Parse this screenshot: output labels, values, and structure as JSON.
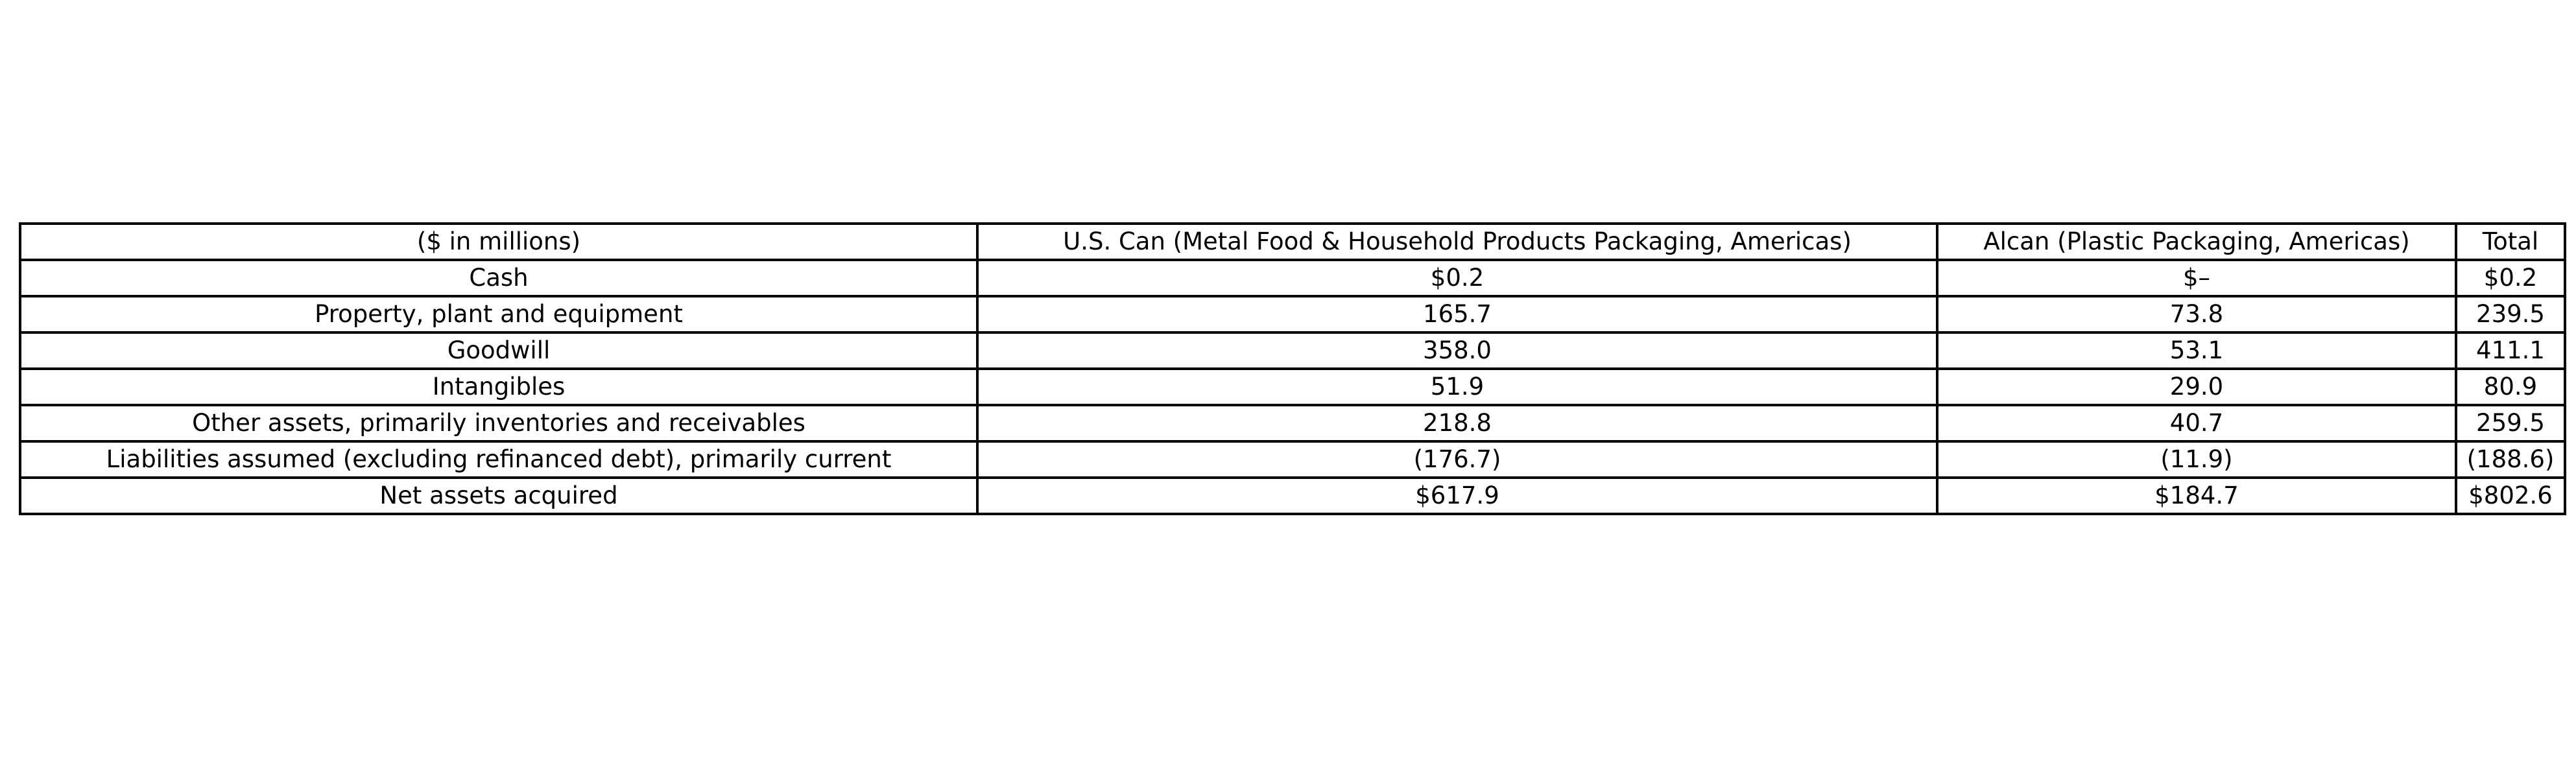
{
  "chart_data": {
    "type": "table",
    "title": "",
    "columns": [
      "($ in millions)",
      "U.S. Can (Metal Food & Household Products Packaging, Americas)",
      "Alcan (Plastic Packaging, Americas)",
      "Total"
    ],
    "rows": [
      [
        "Cash",
        "$0.2",
        "$–",
        "$0.2"
      ],
      [
        "Property, plant and equipment",
        "165.7",
        "73.8",
        "239.5"
      ],
      [
        "Goodwill",
        "358.0",
        "53.1",
        "411.1"
      ],
      [
        "Intangibles",
        "51.9",
        "29.0",
        "80.9"
      ],
      [
        "Other assets, primarily inventories and receivables",
        "218.8",
        "40.7",
        "259.5"
      ],
      [
        "Liabilities assumed (excluding refinanced debt), primarily current",
        "(176.7)",
        "(11.9)",
        "(188.6)"
      ],
      [
        "Net assets acquired",
        "$617.9",
        "$184.7",
        "$802.6"
      ]
    ]
  }
}
